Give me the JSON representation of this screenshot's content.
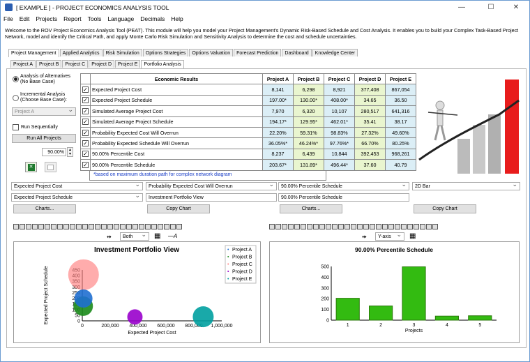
{
  "window": {
    "title": "[ EXAMPLE ] - PROJECT ECONOMICS ANALYSIS TOOL",
    "minimize": "—",
    "maximize": "☐",
    "close": "✕"
  },
  "menu": [
    "File",
    "Edit",
    "Projects",
    "Report",
    "Tools",
    "Language",
    "Decimals",
    "Help"
  ],
  "welcome": "Welcome to the ROV Project Economics Analysis Tool (PEAT). This module will help you model your Project Management's Dynamic Risk-Based Schedule and Cost Analysis. It enables you to build your Complex Task-Based Project Network, model and identify the Critical Path, and apply Monte Carlo Risk Simulation and Sensitivity Analysis to determine the cost and schedule uncertainties.",
  "main_tabs": [
    "Project Management",
    "Applied Analytics",
    "Risk Simulation",
    "Options Strategies",
    "Options Valuation",
    "Forecast Prediction",
    "Dashboard",
    "Knowledge Center"
  ],
  "sub_tabs": [
    "Project A",
    "Project B",
    "Project C",
    "Project D",
    "Project E",
    "Portfolio Analysis"
  ],
  "left": {
    "radio1": "Analysis of Alternatives (No Base Case)",
    "radio2": "Incremental Analysis (Choose Base Case):",
    "base_select": "Project A",
    "run_seq": "Run Sequentially",
    "run_all": "Run All Projects",
    "pct": "90.00%"
  },
  "table": {
    "headers": [
      "Economic Results",
      "Project A",
      "Project B",
      "Project C",
      "Project D",
      "Project E"
    ],
    "rows": [
      {
        "label": "Expected Project Cost",
        "v": [
          "8,141",
          "6,298",
          "8,921",
          "377,408",
          "867,054"
        ]
      },
      {
        "label": "Expected Project Schedule",
        "v": [
          "197.00*",
          "130.00*",
          "408.00*",
          "34.65",
          "36.50"
        ]
      },
      {
        "label": "Simulated Average Project Cost",
        "v": [
          "7,970",
          "6,320",
          "10,107",
          "280,517",
          "641,316"
        ]
      },
      {
        "label": "Simulated Average Project Schedule",
        "v": [
          "194.17*",
          "129.95*",
          "462.01*",
          "35.41",
          "38.17"
        ]
      },
      {
        "label": "Probability Expected Cost Will Overrun",
        "v": [
          "22.20%",
          "59.31%",
          "98.83%",
          "27.32%",
          "49.60%"
        ]
      },
      {
        "label": "Probability Expected Schedule Will Overrun",
        "v": [
          "36.05%*",
          "46.24%*",
          "97.76%*",
          "66.70%",
          "80.25%"
        ]
      },
      {
        "label": "90.00% Percentile Cost",
        "v": [
          "8,237",
          "6,439",
          "10,844",
          "392,453",
          "968,261"
        ]
      },
      {
        "label": "90.00% Percentile Schedule",
        "v": [
          "203.67*",
          "131.89*",
          "496.44*",
          "37.60",
          "40.79"
        ]
      }
    ],
    "footnote": "*based on maximum duration path for complex network diagram"
  },
  "controls": {
    "s1": "Expected Project Cost",
    "s2": "Probability Expected Cost Will Overrun",
    "s3": "90.00% Percentile Schedule",
    "s4": "2D Bar",
    "s5": "Expected Project Schedule",
    "t1": "Investment Portfolio View",
    "t2": "90.00% Percentile Schedule",
    "charts1": "Charts...",
    "copy1": "Copy Chart",
    "charts2": "Charts...",
    "copy2": "Copy Chart",
    "both": "Both",
    "yaxis": "Y-axis"
  },
  "chart_data": [
    {
      "type": "scatter",
      "title": "Investment Portfolio View",
      "xlabel": "Expected Project Cost",
      "ylabel": "Expected Project Schedule",
      "xticks": [
        "0",
        "200,000",
        "400,000",
        "600,000",
        "800,000",
        "1,000,000"
      ],
      "yticks": [
        "0",
        "50",
        "100",
        "150",
        "200",
        "250",
        "300",
        "350",
        "400",
        "450"
      ],
      "xlim": [
        0,
        1000000
      ],
      "ylim": [
        0,
        450
      ],
      "legend_position": "top-right",
      "series": [
        {
          "name": "Project A",
          "x": 8141,
          "y": 197,
          "color": "#1f6fd0"
        },
        {
          "name": "Project B",
          "x": 6298,
          "y": 130,
          "color": "#1a8a1a"
        },
        {
          "name": "Project C",
          "x": 8921,
          "y": 408,
          "color": "#ff8080"
        },
        {
          "name": "Project D",
          "x": 377408,
          "y": 34.65,
          "color": "#9900cc"
        },
        {
          "name": "Project E",
          "x": 867054,
          "y": 36.5,
          "color": "#00a0a0"
        }
      ]
    },
    {
      "type": "bar",
      "title": "90.00% Percentile Schedule",
      "xlabel": "Projects",
      "categories": [
        "1",
        "2",
        "3",
        "4",
        "5"
      ],
      "values": [
        203.67,
        131.89,
        496.44,
        37.6,
        40.79
      ],
      "yticks": [
        "0",
        "100",
        "200",
        "300",
        "400",
        "500"
      ],
      "ylim": [
        0,
        500
      ],
      "color": "#33bb11"
    }
  ]
}
